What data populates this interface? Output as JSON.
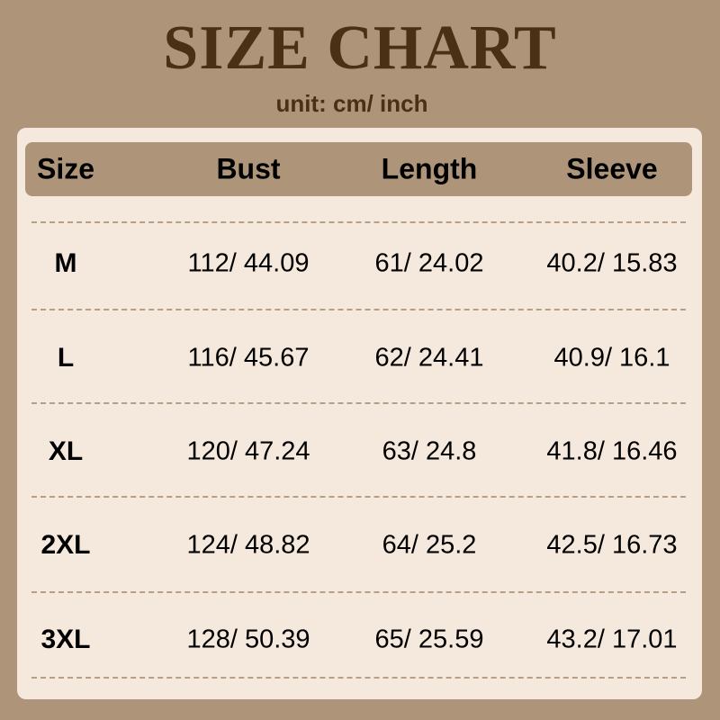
{
  "title": "SIZE CHART",
  "unit": "unit: cm/ inch",
  "headers": [
    "Size",
    "Bust",
    "Length",
    "Sleeve"
  ],
  "rows": [
    [
      "M",
      "112/ 44.09",
      "61/ 24.02",
      "40.2/ 15.83"
    ],
    [
      "L",
      "116/ 45.67",
      "62/ 24.41",
      "40.9/ 16.1"
    ],
    [
      "XL",
      "120/ 47.24",
      "63/ 24.8",
      "41.8/ 16.46"
    ],
    [
      "2XL",
      "124/ 48.82",
      "64/ 25.2",
      "42.5/ 16.73"
    ],
    [
      "3XL",
      "128/ 50.39",
      "65/ 25.59",
      "43.2/ 17.01"
    ]
  ],
  "colors": {
    "background": "#ae957a",
    "panel": "#f5e8dd",
    "title": "#4a3015"
  }
}
